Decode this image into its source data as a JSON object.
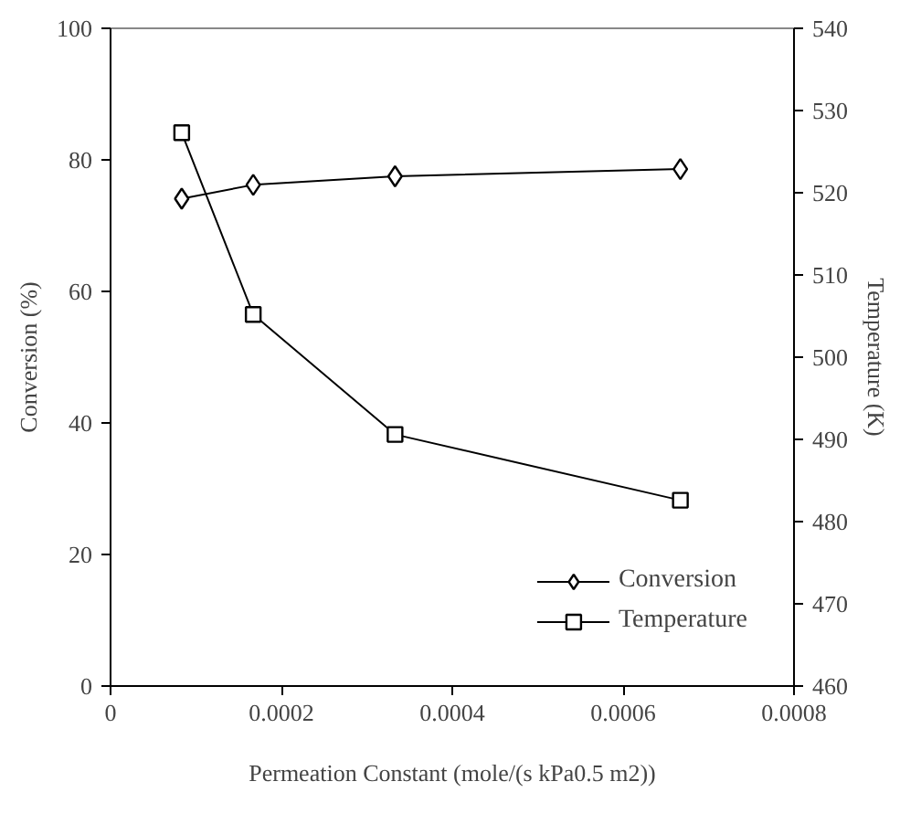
{
  "chart_data": {
    "type": "line",
    "xlabel": "Permeation Constant (mole/(s kPa0.5 m2))",
    "ylabel": "Conversion (%)",
    "y2label": "Temperature (K)",
    "x": [
      8.33e-05,
      0.000167,
      0.000333,
      0.000667
    ],
    "series": [
      {
        "name": "Conversion",
        "color": "#000000",
        "marker": "diamond",
        "values": [
          74.1,
          76.2,
          77.5,
          78.6
        ]
      },
      {
        "name": "Temperature",
        "color": "#000000",
        "marker": "square",
        "axis": "y2",
        "values": [
          527.3,
          505.2,
          490.6,
          482.6
        ]
      }
    ],
    "xlim": [
      0,
      0.0008
    ],
    "xticks": [
      0,
      {
        "value": 0.0002,
        "label": "0.0002"
      },
      {
        "value": 0.0004,
        "label": "0.0004"
      },
      {
        "value": 0.0006,
        "label": "0.0006"
      },
      {
        "value": 0.0008,
        "label": "0.0008"
      }
    ],
    "ylim": [
      0,
      100
    ],
    "yticks": [
      0,
      20,
      40,
      60,
      80,
      100
    ],
    "y2lim": [
      460,
      540
    ],
    "y2ticks": [
      460,
      470,
      480,
      490,
      500,
      510,
      520,
      530,
      540
    ],
    "grid": false,
    "legend": "bottom right",
    "line_style": "solid"
  }
}
